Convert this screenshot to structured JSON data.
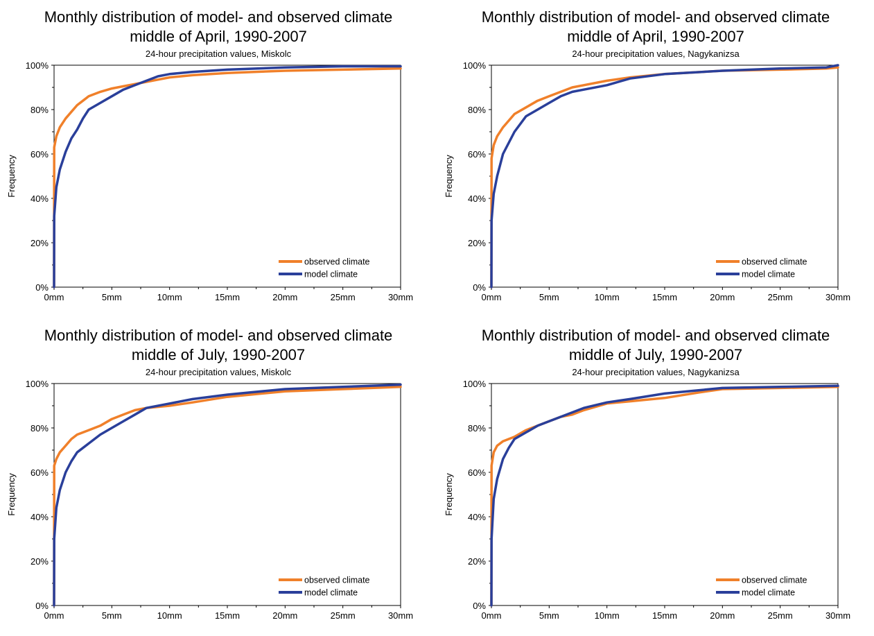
{
  "colors": {
    "observed": "#f0802a",
    "model": "#2a3f9a",
    "axis": "#000000"
  },
  "chart_data": [
    {
      "type": "line",
      "title": "Monthly distribution of model- and observed climate",
      "title2": "middle of April, 1990-2007",
      "subtitle": "24-hour precipitation values, Miskolc",
      "xlabel": "",
      "ylabel": "Frequency",
      "xlim": [
        0,
        30
      ],
      "ylim": [
        0,
        100
      ],
      "xticks": [
        "0mm",
        "5mm",
        "10mm",
        "15mm",
        "20mm",
        "25mm",
        "30mm"
      ],
      "yticks": [
        "0%",
        "20%",
        "40%",
        "60%",
        "80%",
        "100%"
      ],
      "grid": false,
      "legend": "bottom-right",
      "series": [
        {
          "name": "observed climate",
          "color_key": "observed",
          "x": [
            0,
            0.01,
            0.2,
            0.5,
            1,
            1.5,
            2,
            2.5,
            3,
            4,
            5,
            6,
            7,
            8,
            9,
            10,
            12,
            15,
            20,
            25,
            30
          ],
          "y": [
            0,
            63,
            68,
            72,
            76,
            79,
            82,
            84,
            86,
            88,
            89.5,
            90.5,
            91.5,
            92.5,
            93.5,
            94.5,
            95.5,
            96.5,
            97.5,
            98,
            98.5
          ]
        },
        {
          "name": "model climate",
          "color_key": "model",
          "x": [
            0,
            0.01,
            0.2,
            0.5,
            1,
            1.5,
            2,
            2.5,
            3,
            4,
            5,
            6,
            7,
            8,
            9,
            10,
            12,
            15,
            20,
            25,
            30
          ],
          "y": [
            0,
            32,
            45,
            53,
            61,
            67,
            71,
            76,
            80,
            83,
            86,
            89,
            91,
            93,
            95,
            96,
            97,
            98,
            99,
            99.5,
            99.5
          ]
        }
      ]
    },
    {
      "type": "line",
      "title": "Monthly distribution of model- and observed climate",
      "title2": "middle of April, 1990-2007",
      "subtitle": "24-hour precipitation values, Nagykanizsa",
      "xlabel": "",
      "ylabel": "Frequency",
      "xlim": [
        0,
        30
      ],
      "ylim": [
        0,
        100
      ],
      "xticks": [
        "0mm",
        "5mm",
        "10mm",
        "15mm",
        "20mm",
        "25mm",
        "30mm"
      ],
      "yticks": [
        "0%",
        "20%",
        "40%",
        "60%",
        "80%",
        "100%"
      ],
      "grid": false,
      "legend": "bottom-right",
      "series": [
        {
          "name": "observed climate",
          "color_key": "observed",
          "x": [
            0,
            0.01,
            0.2,
            0.5,
            1,
            1.5,
            2,
            3,
            4,
            5,
            6,
            7,
            8,
            10,
            12,
            15,
            20,
            25,
            29,
            30
          ],
          "y": [
            0,
            58,
            64,
            68,
            72,
            75,
            78,
            81,
            84,
            86,
            88,
            90,
            91,
            93,
            94.5,
            96,
            97.5,
            98,
            98.5,
            99
          ]
        },
        {
          "name": "model climate",
          "color_key": "model",
          "x": [
            0,
            0.01,
            0.2,
            0.5,
            1,
            1.5,
            2,
            3,
            4,
            5,
            6,
            7,
            8,
            10,
            12,
            15,
            20,
            25,
            29,
            30
          ],
          "y": [
            0,
            30,
            42,
            50,
            60,
            65,
            70,
            77,
            80,
            83,
            86,
            88,
            89,
            91,
            94,
            96,
            97.5,
            98.5,
            99,
            100
          ]
        }
      ]
    },
    {
      "type": "line",
      "title": "Monthly distribution of model- and observed climate",
      "title2": "middle of July, 1990-2007",
      "subtitle": "24-hour precipitation values, Miskolc",
      "xlabel": "",
      "ylabel": "Frequency",
      "xlim": [
        0,
        30
      ],
      "ylim": [
        0,
        100
      ],
      "xticks": [
        "0mm",
        "5mm",
        "10mm",
        "15mm",
        "20mm",
        "25mm",
        "30mm"
      ],
      "yticks": [
        "0%",
        "20%",
        "40%",
        "60%",
        "80%",
        "100%"
      ],
      "grid": false,
      "legend": "bottom-right",
      "series": [
        {
          "name": "observed climate",
          "color_key": "observed",
          "x": [
            0,
            0.01,
            0.2,
            0.5,
            1,
            1.5,
            2,
            3,
            4,
            5,
            6,
            7,
            8,
            10,
            12,
            15,
            17,
            20,
            25,
            30
          ],
          "y": [
            0,
            63,
            66,
            69,
            72,
            75,
            77,
            79,
            81,
            84,
            86,
            88,
            89,
            90,
            91.5,
            94,
            95,
            96.5,
            97.5,
            98.5
          ]
        },
        {
          "name": "model climate",
          "color_key": "model",
          "x": [
            0,
            0.01,
            0.2,
            0.5,
            1,
            1.5,
            2,
            3,
            4,
            5,
            6,
            7,
            8,
            10,
            12,
            15,
            17,
            20,
            25,
            30
          ],
          "y": [
            0,
            30,
            44,
            52,
            60,
            65,
            69,
            73,
            77,
            80,
            83,
            86,
            89,
            91,
            93,
            95,
            96,
            97.5,
            98.5,
            99.5
          ]
        }
      ]
    },
    {
      "type": "line",
      "title": "Monthly distribution of model- and observed climate",
      "title2": "middle of July, 1990-2007",
      "subtitle": "24-hour precipitation values, Nagykanizsa",
      "xlabel": "",
      "ylabel": "Frequency",
      "xlim": [
        0,
        30
      ],
      "ylim": [
        0,
        100
      ],
      "xticks": [
        "0mm",
        "5mm",
        "10mm",
        "15mm",
        "20mm",
        "25mm",
        "30mm"
      ],
      "yticks": [
        "0%",
        "20%",
        "40%",
        "60%",
        "80%",
        "100%"
      ],
      "grid": false,
      "legend": "bottom-right",
      "series": [
        {
          "name": "observed climate",
          "color_key": "observed",
          "x": [
            0,
            0.01,
            0.2,
            0.5,
            1,
            1.5,
            2,
            3,
            4,
            5,
            6,
            7,
            8,
            10,
            12,
            15,
            18,
            20,
            25,
            30
          ],
          "y": [
            0,
            63,
            69,
            72,
            74,
            75,
            76,
            79,
            81,
            83,
            85,
            86,
            88,
            91,
            92,
            93.5,
            96,
            97.5,
            98,
            98.5
          ]
        },
        {
          "name": "model climate",
          "color_key": "model",
          "x": [
            0,
            0.01,
            0.2,
            0.5,
            1,
            1.5,
            2,
            3,
            4,
            5,
            6,
            7,
            8,
            10,
            12,
            15,
            18,
            20,
            25,
            30
          ],
          "y": [
            0,
            30,
            48,
            57,
            66,
            71,
            75,
            78,
            81,
            83,
            85,
            87,
            89,
            91.5,
            93,
            95.5,
            97,
            98,
            98.5,
            99
          ]
        }
      ]
    }
  ]
}
